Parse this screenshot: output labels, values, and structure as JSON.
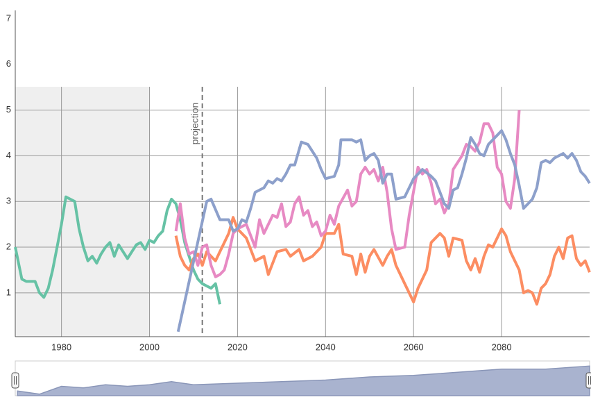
{
  "chart_data": [
    {
      "type": "line",
      "xlim": [
        1969.5,
        2100
      ],
      "ylim": [
        0.04,
        7.41
      ],
      "xticks": [
        1980,
        2000,
        2020,
        2040,
        2060,
        2080
      ],
      "yticks": [
        1,
        2,
        3,
        4,
        5,
        6,
        7
      ],
      "grid": true,
      "shaded_xrange": [
        1969.5,
        2000
      ],
      "projection_x": 2012,
      "projection_label": "projection",
      "series": [
        {
          "color": "#66c2a5",
          "x": [
            1969.5,
            1971,
            1972,
            1974,
            1975,
            1976,
            1977,
            1978,
            1979,
            1980,
            1981,
            1982,
            1983,
            1984,
            1985,
            1986,
            1987,
            1988,
            1989,
            1990,
            1991,
            1992,
            1993,
            1994,
            1995,
            1996,
            1997,
            1998,
            1999,
            2000,
            2001,
            2002,
            2003,
            2004,
            2005,
            2006,
            2007,
            2008,
            2009,
            2010,
            2011,
            2012,
            2013,
            2014,
            2015,
            2016
          ],
          "values": [
            2.0,
            1.3,
            1.25,
            1.25,
            1.0,
            0.9,
            1.1,
            1.5,
            2.0,
            2.5,
            3.1,
            3.05,
            3.0,
            2.4,
            2.0,
            1.7,
            1.8,
            1.65,
            1.85,
            2.0,
            2.1,
            1.8,
            2.05,
            1.9,
            1.75,
            1.9,
            2.05,
            2.1,
            1.95,
            2.15,
            2.1,
            2.25,
            2.35,
            2.8,
            3.05,
            2.95,
            2.6,
            2.1,
            1.8,
            1.5,
            1.3,
            1.2,
            1.15,
            1.1,
            1.2,
            0.75
          ]
        },
        {
          "color": "#fc8d62",
          "x": [
            2006,
            2007,
            2008,
            2009,
            2010,
            2011,
            2012,
            2013,
            2014,
            2015,
            2016,
            2017,
            2018,
            2019,
            2020,
            2022,
            2024,
            2026,
            2027,
            2029,
            2031,
            2032,
            2034,
            2035,
            2037,
            2039,
            2040,
            2042,
            2043,
            2044,
            2046,
            2047,
            2048,
            2049,
            2050,
            2051,
            2053,
            2054,
            2055,
            2056,
            2058,
            2060,
            2061,
            2063,
            2064,
            2066,
            2067,
            2068,
            2069,
            2071,
            2072,
            2073,
            2074,
            2075,
            2076,
            2077,
            2078,
            2080,
            2081,
            2082,
            2084,
            2085,
            2086,
            2087,
            2088,
            2089,
            2090,
            2091,
            2092,
            2093,
            2094,
            2095,
            2096,
            2097,
            2098,
            2099,
            2100
          ],
          "values": [
            2.25,
            1.8,
            1.6,
            1.5,
            1.75,
            1.85,
            1.6,
            1.9,
            1.8,
            1.7,
            1.9,
            2.1,
            2.3,
            2.65,
            2.4,
            2.2,
            1.7,
            1.8,
            1.4,
            1.9,
            1.95,
            1.8,
            1.95,
            1.7,
            1.8,
            2.0,
            2.3,
            2.3,
            2.5,
            1.85,
            1.8,
            1.4,
            1.85,
            1.45,
            1.8,
            1.95,
            1.6,
            1.8,
            1.95,
            1.6,
            1.2,
            0.8,
            1.1,
            1.5,
            2.1,
            2.3,
            2.2,
            1.8,
            2.2,
            2.15,
            1.7,
            1.5,
            1.75,
            1.45,
            1.8,
            2.05,
            2.0,
            2.4,
            2.25,
            1.9,
            1.5,
            1.0,
            1.05,
            1.0,
            0.75,
            1.1,
            1.2,
            1.4,
            1.8,
            2.0,
            1.75,
            2.2,
            2.25,
            1.75,
            1.6,
            1.7,
            1.45
          ]
        },
        {
          "color": "#e78ac3",
          "x": [
            2006,
            2007,
            2008,
            2009,
            2010,
            2011,
            2012,
            2013,
            2014,
            2015,
            2016,
            2017,
            2018,
            2019,
            2020,
            2022,
            2024,
            2025,
            2026,
            2028,
            2029,
            2030,
            2031,
            2032,
            2033,
            2034,
            2035,
            2036,
            2037,
            2038,
            2039,
            2040,
            2041,
            2042,
            2043,
            2045,
            2046,
            2047,
            2048,
            2049,
            2050,
            2051,
            2052,
            2053,
            2054,
            2055,
            2056,
            2058,
            2059,
            2061,
            2062,
            2063,
            2064,
            2065,
            2066,
            2067,
            2068,
            2069,
            2071,
            2072,
            2073,
            2074,
            2075,
            2076,
            2077,
            2078,
            2079,
            2080,
            2081,
            2082,
            2083,
            2084
          ],
          "values": [
            2.35,
            2.95,
            2.2,
            1.85,
            1.9,
            1.6,
            2.0,
            2.05,
            1.6,
            1.35,
            1.4,
            1.5,
            1.85,
            2.3,
            2.4,
            2.5,
            2.0,
            2.6,
            2.3,
            2.7,
            2.65,
            2.95,
            2.45,
            2.55,
            2.95,
            3.1,
            2.7,
            2.8,
            2.45,
            2.55,
            2.25,
            2.35,
            2.7,
            2.5,
            2.9,
            3.25,
            2.9,
            3.0,
            3.6,
            3.75,
            3.6,
            3.7,
            3.45,
            3.75,
            3.2,
            2.4,
            1.95,
            2.0,
            2.7,
            3.75,
            3.6,
            3.7,
            3.4,
            2.95,
            3.05,
            2.75,
            2.95,
            3.7,
            4.0,
            4.25,
            4.2,
            4.1,
            4.3,
            4.7,
            4.7,
            4.5,
            3.75,
            3.6,
            3.0,
            2.85,
            3.5,
            5.0
          ]
        },
        {
          "color": "#8da0cb",
          "x": [
            2006.5,
            2013,
            2014,
            2016,
            2018,
            2019,
            2020,
            2021,
            2022,
            2023,
            2024,
            2026,
            2027,
            2028,
            2029,
            2030,
            2031,
            2032,
            2033,
            2034.5,
            2036,
            2038,
            2039,
            2040,
            2042,
            2043,
            2043.5,
            2046,
            2047,
            2048,
            2049,
            2050,
            2051,
            2052,
            2053,
            2054,
            2055,
            2056,
            2058,
            2059,
            2060,
            2062,
            2064,
            2065,
            2066,
            2067,
            2068,
            2069,
            2070,
            2071,
            2072,
            2073,
            2074,
            2075,
            2076,
            2077,
            2078,
            2079,
            2080,
            2081,
            2082,
            2083,
            2084,
            2085,
            2086,
            2087,
            2088,
            2089,
            2090,
            2091,
            2092,
            2093,
            2094,
            2095,
            2096,
            2097,
            2098,
            2099,
            2100
          ],
          "values": [
            0.15,
            3.0,
            3.05,
            2.6,
            2.6,
            2.35,
            2.4,
            2.6,
            2.55,
            2.85,
            3.2,
            3.3,
            3.45,
            3.4,
            3.5,
            3.45,
            3.6,
            3.8,
            3.8,
            4.3,
            4.25,
            3.95,
            3.7,
            3.5,
            3.55,
            3.8,
            4.35,
            4.35,
            4.3,
            4.35,
            3.9,
            4.0,
            4.05,
            3.9,
            3.4,
            3.6,
            3.6,
            3.05,
            3.1,
            3.3,
            3.5,
            3.7,
            3.55,
            3.45,
            3.2,
            2.95,
            2.85,
            3.25,
            3.3,
            3.6,
            3.95,
            4.4,
            4.25,
            4.05,
            4.0,
            4.25,
            4.35,
            4.45,
            4.55,
            4.35,
            4.05,
            3.8,
            3.35,
            2.85,
            2.95,
            3.05,
            3.3,
            3.85,
            3.9,
            3.85,
            3.95,
            4.0,
            4.05,
            3.95,
            4.05,
            3.9,
            3.65,
            3.55,
            3.4
          ]
        }
      ]
    },
    {
      "type": "area",
      "color": "#8a96b8",
      "xlim": [
        1969.5,
        2100
      ],
      "ylim": [
        0,
        1
      ],
      "x": [
        1970,
        1975,
        1980,
        1985,
        1990,
        1995,
        2000,
        2005,
        2010,
        2020,
        2030,
        2040,
        2050,
        2060,
        2070,
        2080,
        2090,
        2100
      ],
      "values": [
        0.15,
        0.05,
        0.3,
        0.25,
        0.35,
        0.3,
        0.35,
        0.45,
        0.35,
        0.4,
        0.45,
        0.5,
        0.6,
        0.65,
        0.75,
        0.85,
        0.85,
        0.95
      ]
    }
  ]
}
